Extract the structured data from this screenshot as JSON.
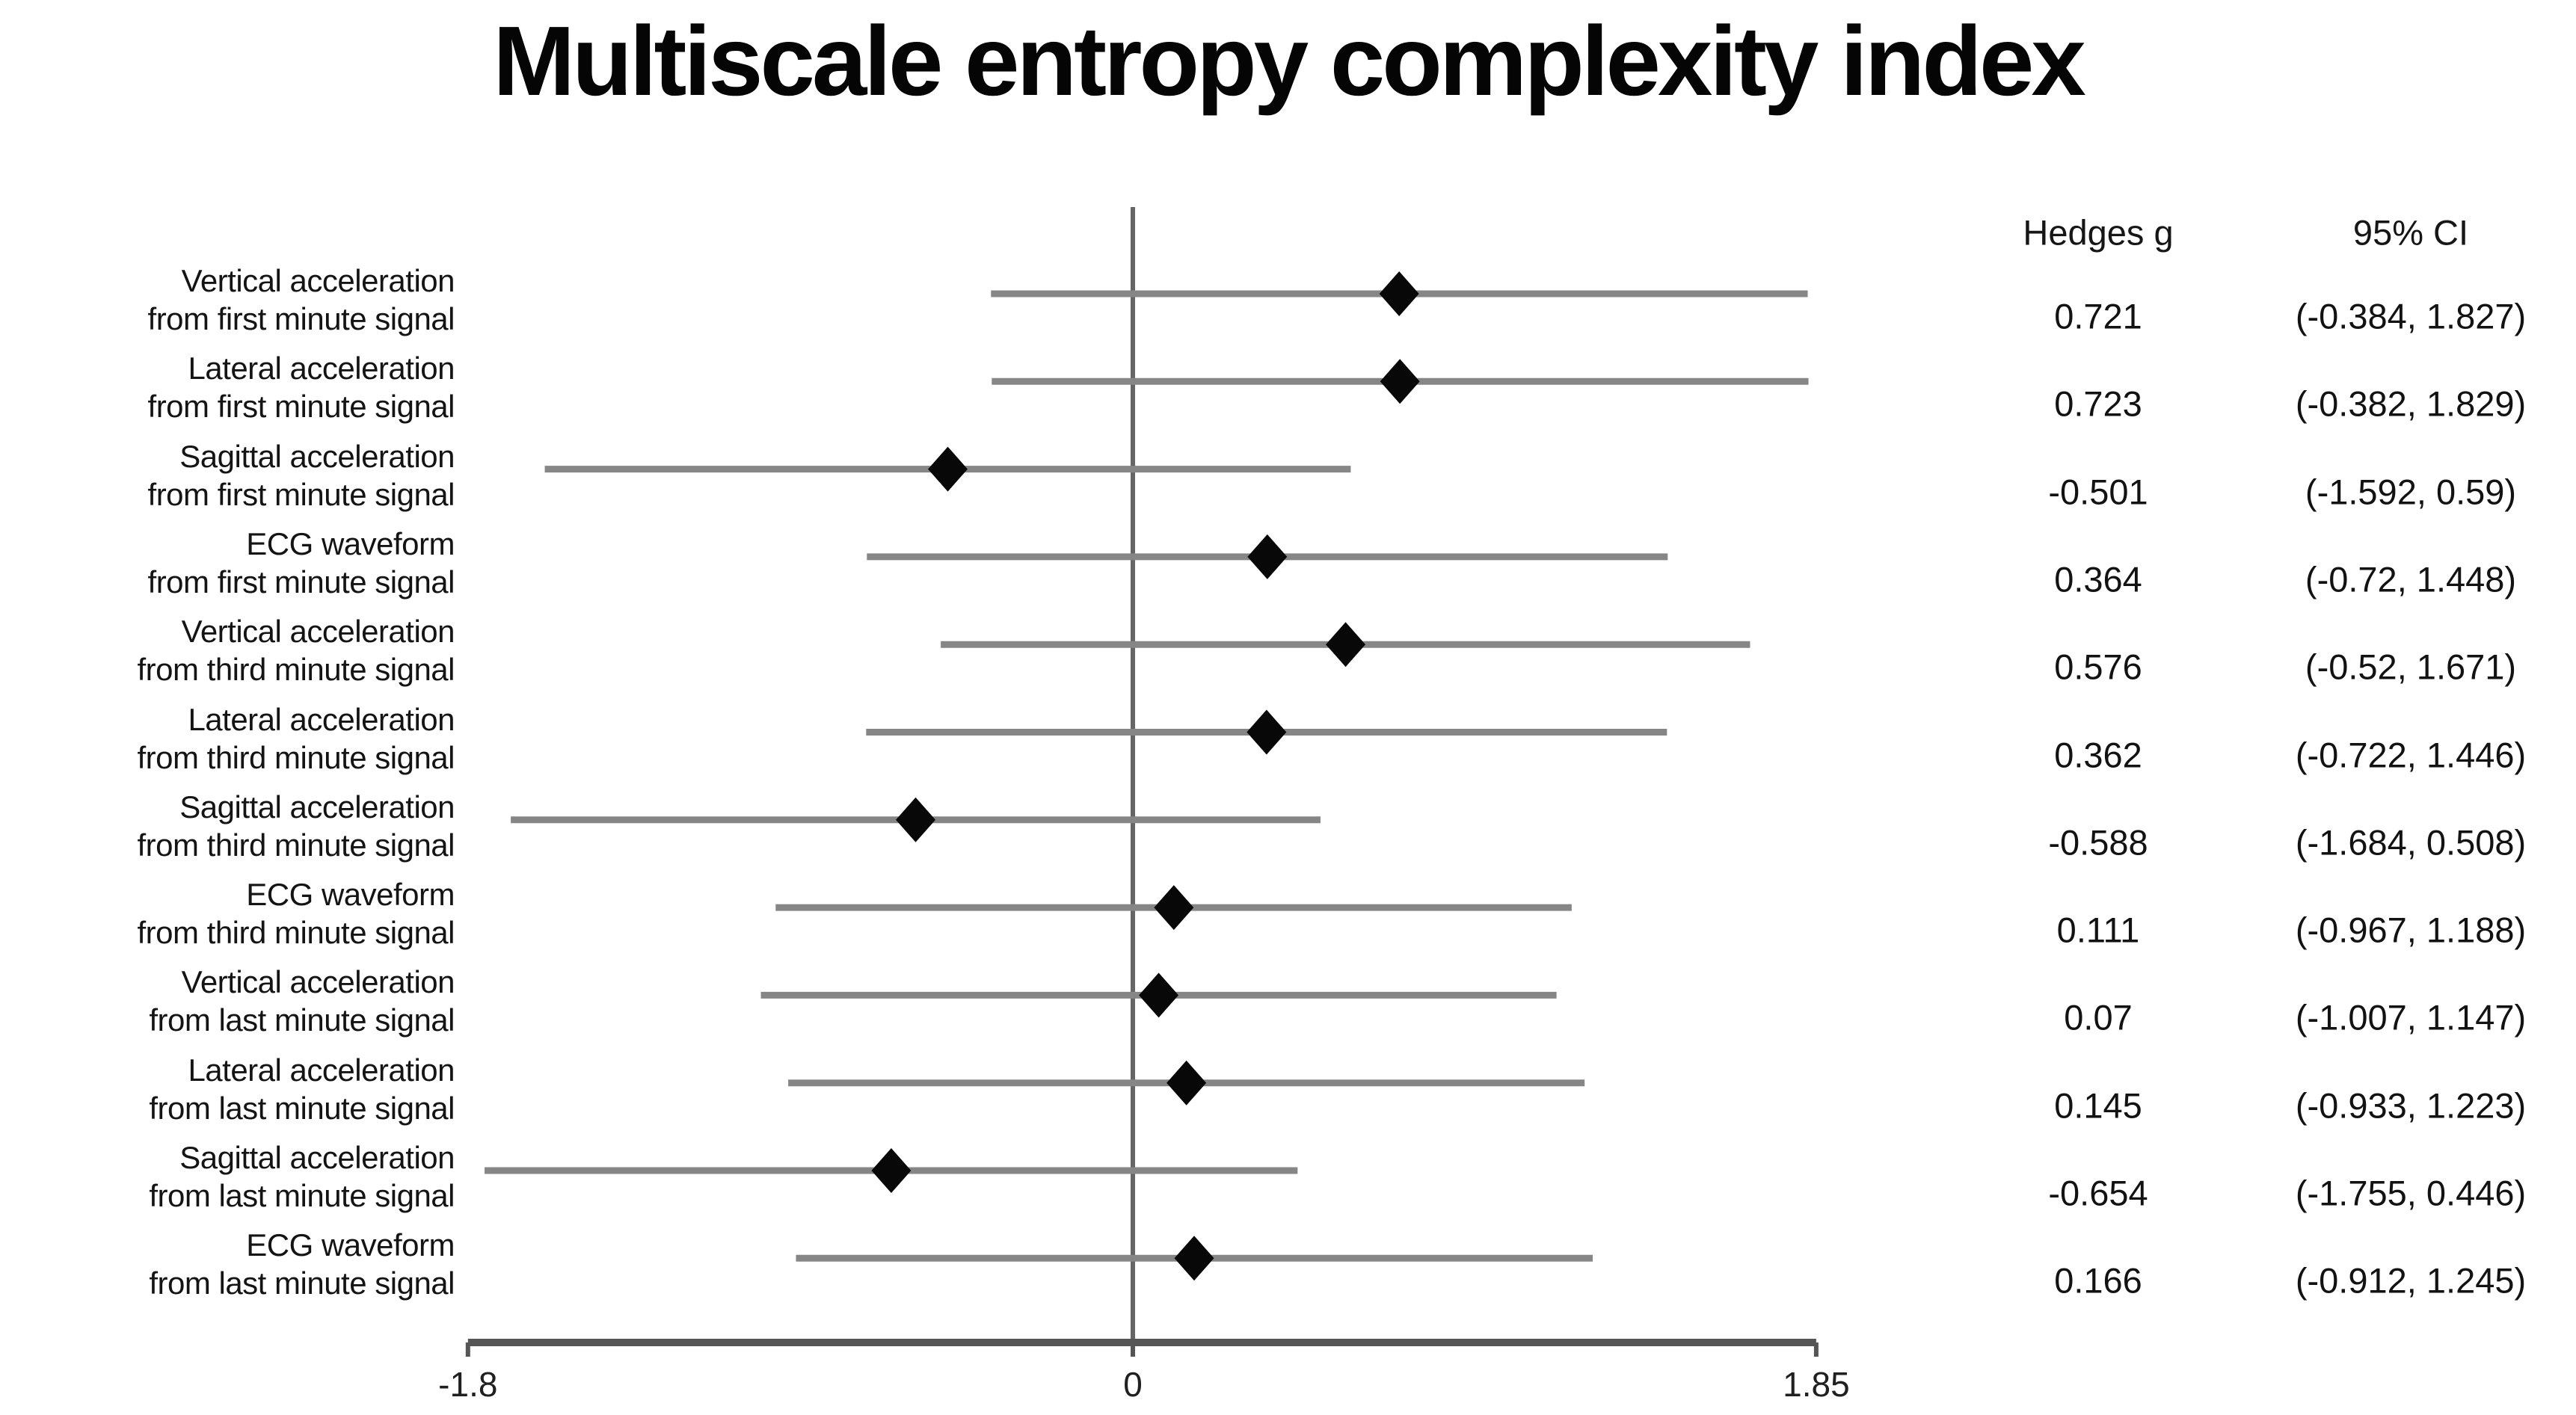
{
  "chart_data": {
    "type": "forest",
    "title": "Multiscale entropy complexity index",
    "columns": {
      "effect": "Hedges g",
      "ci": "95% CI"
    },
    "rows": [
      {
        "label1": "Vertical acceleration",
        "label2": "from first minute signal",
        "g": 0.721,
        "g_label": "0.721",
        "ci_low": -0.384,
        "ci_high": 1.827,
        "ci_label": "(-0.384, 1.827)"
      },
      {
        "label1": "Lateral acceleration",
        "label2": "from first minute signal",
        "g": 0.723,
        "g_label": "0.723",
        "ci_low": -0.382,
        "ci_high": 1.829,
        "ci_label": "(-0.382, 1.829)"
      },
      {
        "label1": "Sagittal acceleration",
        "label2": "from first minute signal",
        "g": -0.501,
        "g_label": "-0.501",
        "ci_low": -1.592,
        "ci_high": 0.59,
        "ci_label": "(-1.592, 0.59)"
      },
      {
        "label1": "ECG waveform",
        "label2": "from first minute signal",
        "g": 0.364,
        "g_label": "0.364",
        "ci_low": -0.72,
        "ci_high": 1.448,
        "ci_label": "(-0.72, 1.448)"
      },
      {
        "label1": "Vertical acceleration",
        "label2": "from third minute signal",
        "g": 0.576,
        "g_label": "0.576",
        "ci_low": -0.52,
        "ci_high": 1.671,
        "ci_label": "(-0.52, 1.671)"
      },
      {
        "label1": "Lateral acceleration",
        "label2": "from third minute signal",
        "g": 0.362,
        "g_label": "0.362",
        "ci_low": -0.722,
        "ci_high": 1.446,
        "ci_label": "(-0.722, 1.446)"
      },
      {
        "label1": "Sagittal acceleration",
        "label2": "from third minute signal",
        "g": -0.588,
        "g_label": "-0.588",
        "ci_low": -1.684,
        "ci_high": 0.508,
        "ci_label": "(-1.684, 0.508)"
      },
      {
        "label1": "ECG waveform",
        "label2": "from third minute signal",
        "g": 0.111,
        "g_label": "0.111",
        "ci_low": -0.967,
        "ci_high": 1.188,
        "ci_label": "(-0.967, 1.188)"
      },
      {
        "label1": "Vertical acceleration",
        "label2": "from last minute signal",
        "g": 0.07,
        "g_label": "0.07",
        "ci_low": -1.007,
        "ci_high": 1.147,
        "ci_label": "(-1.007, 1.147)"
      },
      {
        "label1": "Lateral acceleration",
        "label2": "from last minute signal",
        "g": 0.145,
        "g_label": "0.145",
        "ci_low": -0.933,
        "ci_high": 1.223,
        "ci_label": "(-0.933, 1.223)"
      },
      {
        "label1": "Sagittal acceleration",
        "label2": "from last minute signal",
        "g": -0.654,
        "g_label": "-0.654",
        "ci_low": -1.755,
        "ci_high": 0.446,
        "ci_label": "(-1.755, 0.446)"
      },
      {
        "label1": "ECG waveform",
        "label2": "from last minute signal",
        "g": 0.166,
        "g_label": "0.166",
        "ci_low": -0.912,
        "ci_high": 1.245,
        "ci_label": "(-0.912, 1.245)"
      }
    ],
    "x_axis": {
      "range": [
        -1.8,
        1.85
      ],
      "ticks": [
        {
          "value": -1.8,
          "label": "-1.8"
        },
        {
          "value": 0,
          "label": "0"
        },
        {
          "value": 1.85,
          "label": "1.85"
        }
      ],
      "zero_line": true
    },
    "marker": "diamond",
    "legend": "none",
    "grid": "off",
    "colors": {
      "background": "#ffffff",
      "text": "#111111",
      "marker": "#080808",
      "ci_line": "#868686",
      "zero_line": "#666666",
      "axis": "#555555"
    }
  }
}
